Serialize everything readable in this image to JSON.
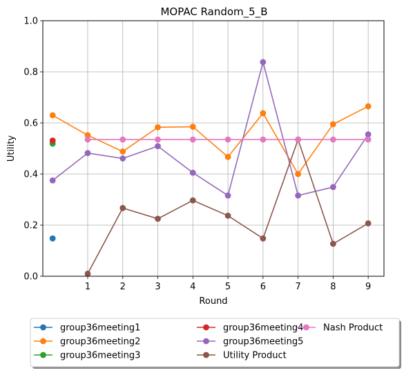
{
  "chart_data": {
    "type": "line",
    "title": "MOPAC Random_5_B",
    "xlabel": "Round",
    "ylabel": "Utility",
    "ylim": [
      0,
      1.0
    ],
    "xlim": [
      -0.28,
      9.45
    ],
    "x_ticks": [
      1,
      2,
      3,
      4,
      5,
      6,
      7,
      8,
      9
    ],
    "y_ticks": [
      0.0,
      0.2,
      0.4,
      0.6,
      0.8,
      1.0
    ],
    "y_tick_labels": [
      "0.0",
      "0.2",
      "0.4",
      "0.6",
      "0.8",
      "1.0"
    ],
    "grid": true,
    "legend_placement": "bottom-center",
    "series": [
      {
        "name": "group36meeting1",
        "color": "#1f77b4",
        "x": [
          0
        ],
        "y": [
          0.148
        ]
      },
      {
        "name": "group36meeting2",
        "color": "#ff7f0e",
        "x": [
          0,
          1,
          2,
          3,
          4,
          5,
          6,
          7,
          8,
          9
        ],
        "y": [
          0.63,
          0.552,
          0.488,
          0.583,
          0.585,
          0.467,
          0.638,
          0.4,
          0.595,
          0.665
        ]
      },
      {
        "name": "group36meeting3",
        "color": "#2ca02c",
        "x": [
          0
        ],
        "y": [
          0.519
        ]
      },
      {
        "name": "group36meeting4",
        "color": "#d62728",
        "x": [
          0
        ],
        "y": [
          0.531
        ]
      },
      {
        "name": "group36meeting5",
        "color": "#9467bd",
        "x": [
          0,
          1,
          2,
          3,
          4,
          5,
          6,
          7,
          8,
          9
        ],
        "y": [
          0.375,
          0.482,
          0.461,
          0.509,
          0.405,
          0.316,
          0.838,
          0.316,
          0.349,
          0.555
        ]
      },
      {
        "name": "Utility Product",
        "color": "#8c564b",
        "x": [
          1,
          2,
          3,
          4,
          5,
          6,
          7,
          8,
          9
        ],
        "y": [
          0.01,
          0.267,
          0.225,
          0.297,
          0.237,
          0.148,
          0.535,
          0.127,
          0.207
        ]
      },
      {
        "name": "Nash Product",
        "color": "#e377c2",
        "x": [
          1,
          2,
          3,
          4,
          5,
          6,
          7,
          8,
          9
        ],
        "y": [
          0.535,
          0.535,
          0.535,
          0.535,
          0.535,
          0.535,
          0.535,
          0.535,
          0.535
        ]
      }
    ]
  }
}
